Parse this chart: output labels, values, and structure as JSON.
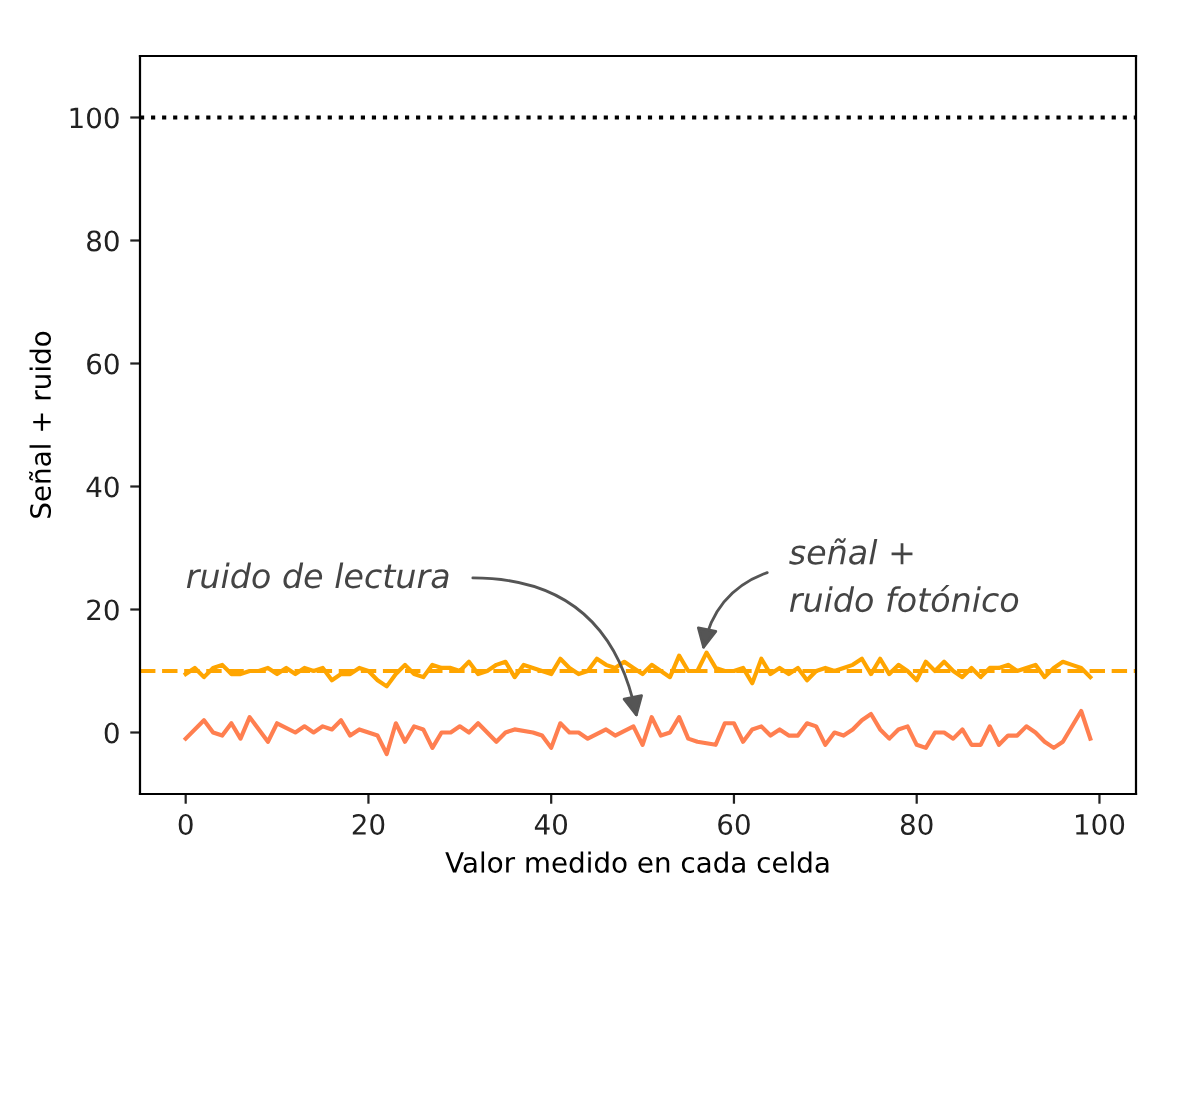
{
  "chart_data": {
    "type": "line",
    "xlabel": "Valor medido en cada celda",
    "ylabel": "Señal + ruido",
    "xlim": [
      -5,
      104
    ],
    "ylim": [
      -10,
      110
    ],
    "xticks": [
      0,
      20,
      40,
      60,
      80,
      100
    ],
    "yticks": [
      0,
      20,
      40,
      60,
      80,
      100
    ],
    "grid": false,
    "marker": "none",
    "line_style": "solid",
    "series": [
      {
        "color": "#ffa500",
        "x": [
          0,
          1,
          2,
          3,
          4,
          5,
          6,
          7,
          8,
          9,
          10,
          11,
          12,
          13,
          14,
          15,
          16,
          17,
          18,
          19,
          20,
          21,
          22,
          23,
          24,
          25,
          26,
          27,
          28,
          29,
          30,
          31,
          32,
          33,
          34,
          35,
          36,
          37,
          38,
          39,
          40,
          41,
          42,
          43,
          44,
          45,
          46,
          47,
          48,
          49,
          50,
          51,
          52,
          53,
          54,
          55,
          56,
          57,
          58,
          59,
          60,
          61,
          62,
          63,
          64,
          65,
          66,
          67,
          68,
          69,
          70,
          71,
          72,
          73,
          74,
          75,
          76,
          77,
          78,
          79,
          80,
          81,
          82,
          83,
          84,
          85,
          86,
          87,
          88,
          89,
          90,
          91,
          92,
          93,
          94,
          95,
          96,
          97,
          98,
          99
        ],
        "values": [
          9.5,
          10.5,
          9,
          10.5,
          11,
          9.5,
          9.5,
          10,
          10,
          10.5,
          9.5,
          10.5,
          9.5,
          10.5,
          10,
          10.5,
          8.5,
          9.5,
          9.5,
          10.5,
          10,
          8.5,
          7.5,
          9.5,
          11,
          9.5,
          9,
          11,
          10.5,
          10.5,
          10,
          11.5,
          9.5,
          10,
          11,
          11.5,
          9,
          11,
          10.5,
          10,
          9.5,
          12,
          10.5,
          9.5,
          10,
          12,
          11,
          10.5,
          11.5,
          10.5,
          9.5,
          11,
          10,
          9,
          12.5,
          10,
          10,
          13,
          10.5,
          10,
          10,
          10.5,
          8,
          12,
          9.5,
          10.5,
          9.5,
          10.5,
          8.5,
          10,
          10.5,
          10,
          10.5,
          11,
          12,
          9.5,
          12,
          9.5,
          11,
          10,
          8.5,
          11.5,
          10,
          11.5,
          10,
          9,
          10.5,
          9,
          10.5,
          10.5,
          11,
          10,
          10.5,
          11,
          9,
          10.5,
          11.5,
          11,
          10.5,
          9
        ]
      },
      {
        "color": "#ff7f50",
        "x": [
          0,
          2,
          3,
          4,
          5,
          6,
          7,
          9,
          10,
          12,
          13,
          14,
          15,
          16,
          17,
          18,
          19,
          21,
          22,
          23,
          24,
          25,
          26,
          27,
          28,
          29,
          30,
          31,
          32,
          34,
          35,
          36,
          38,
          39,
          40,
          41,
          42,
          43,
          44,
          46,
          47,
          49,
          50,
          51,
          52,
          53,
          54,
          55,
          56,
          58,
          59,
          60,
          61,
          62,
          63,
          64,
          65,
          66,
          67,
          68,
          69,
          70,
          71,
          72,
          73,
          74,
          75,
          76,
          77,
          78,
          79,
          80,
          81,
          82,
          83,
          84,
          85,
          86,
          87,
          88,
          89,
          90,
          91,
          92,
          93,
          94,
          95,
          96,
          98,
          99
        ],
        "values": [
          -1,
          2,
          0,
          -0.5,
          1.5,
          -1,
          2.5,
          -1.5,
          1.5,
          0,
          1,
          0,
          1,
          0.5,
          2,
          -0.5,
          0.5,
          -0.5,
          -3.5,
          1.5,
          -1.5,
          1,
          0.5,
          -2.5,
          0,
          0,
          1,
          0,
          1.5,
          -1.5,
          0,
          0.5,
          0,
          -0.5,
          -2.5,
          1.5,
          0,
          0,
          -1,
          0.5,
          -0.5,
          1,
          -2,
          2.5,
          -0.5,
          0,
          2.5,
          -1,
          -1.5,
          -2,
          1.5,
          1.5,
          -1.5,
          0.5,
          1,
          -0.5,
          0.5,
          -0.5,
          -0.5,
          1.5,
          1,
          -2,
          0,
          -0.5,
          0.5,
          2,
          3,
          0.5,
          -1,
          0.5,
          1,
          -2,
          -2.5,
          0,
          0,
          -1,
          0.5,
          -2,
          -2,
          1,
          -2,
          -0.5,
          -0.5,
          1,
          0,
          -1.5,
          -2.5,
          -1.5,
          3.5,
          -1
        ]
      }
    ],
    "ref_lines": [
      {
        "axis": "y",
        "value": 100,
        "color": "#000000",
        "line_style": "dotted"
      },
      {
        "axis": "y",
        "value": 10,
        "color": "#ffa500",
        "line_style": "dashed"
      }
    ],
    "annotations": [
      {
        "text": "ruido de lectura",
        "x": 49.5,
        "y": 1.5
      },
      {
        "text": "señal +\nruido fotónico",
        "x": 56.5,
        "y": 12.5
      }
    ]
  }
}
